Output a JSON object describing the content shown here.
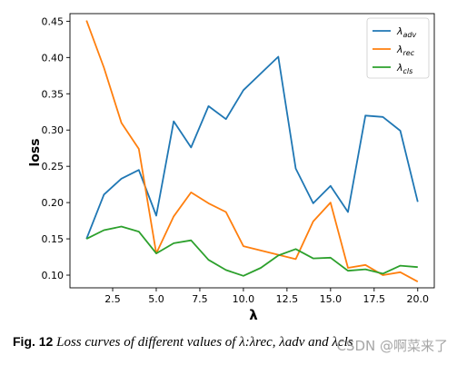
{
  "chart_data": {
    "type": "line",
    "ylabel": "loss",
    "xlabel": "λ",
    "xlim": [
      0.05,
      20.95
    ],
    "ylim": [
      0.0825,
      0.4605
    ],
    "x_ticks": [
      2.5,
      5.0,
      7.5,
      10.0,
      12.5,
      15.0,
      17.5,
      20.0
    ],
    "x_tick_labels": [
      "2.5",
      "5.0",
      "7.5",
      "10.0",
      "12.5",
      "15.0",
      "17.5",
      "20.0"
    ],
    "y_ticks": [
      0.1,
      0.15,
      0.2,
      0.25,
      0.3,
      0.35,
      0.4,
      0.45
    ],
    "y_tick_labels": [
      "0.10",
      "0.15",
      "0.20",
      "0.25",
      "0.30",
      "0.35",
      "0.40",
      "0.45"
    ],
    "grid": false,
    "legend_position": "top-right",
    "x": [
      1,
      2,
      3,
      4,
      5,
      6,
      7,
      8,
      9,
      10,
      11,
      12,
      13,
      14,
      15,
      16,
      17,
      18,
      19,
      20
    ],
    "series": [
      {
        "name": "λadv",
        "name_main": "λ",
        "name_sub": "adv",
        "color": "#1f77b4",
        "values": [
          0.15,
          0.211,
          0.233,
          0.245,
          0.182,
          0.312,
          0.276,
          0.333,
          0.315,
          0.355,
          0.378,
          0.401,
          0.247,
          0.199,
          0.223,
          0.187,
          0.32,
          0.318,
          0.299,
          0.201
        ]
      },
      {
        "name": "λrec",
        "name_main": "λ",
        "name_sub": "rec",
        "color": "#ff7f0e",
        "values": [
          0.451,
          0.386,
          0.31,
          0.274,
          0.13,
          0.181,
          0.214,
          0.199,
          0.187,
          0.14,
          0.134,
          0.128,
          0.122,
          0.174,
          0.2,
          0.11,
          0.114,
          0.1,
          0.104,
          0.091
        ]
      },
      {
        "name": "λcls",
        "name_main": "λ",
        "name_sub": "cls",
        "color": "#2ca02c",
        "values": [
          0.15,
          0.162,
          0.167,
          0.16,
          0.13,
          0.144,
          0.148,
          0.121,
          0.107,
          0.099,
          0.11,
          0.127,
          0.136,
          0.123,
          0.124,
          0.106,
          0.108,
          0.102,
          0.113,
          0.111
        ]
      }
    ]
  },
  "caption": {
    "label": "Fig. 12",
    "text": "Loss curves of different values of λ:λrec, λadv and λcls"
  },
  "watermark": "CSDN @啊菜来了"
}
